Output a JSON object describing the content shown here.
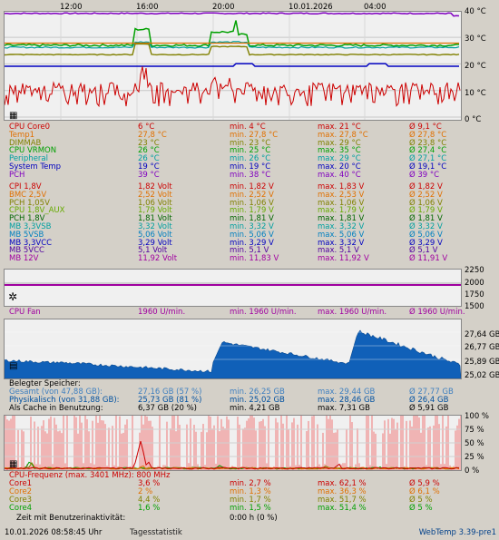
{
  "time_axis": [
    "12:00",
    "16:00",
    "20:00",
    "10.01.2026",
    "04:00"
  ],
  "temp_axis": [
    "40 °C",
    "30 °C",
    "20 °C",
    "10 °C",
    "0 °C"
  ],
  "temps": [
    {
      "name": "CPU Core0",
      "cur": "6 °C",
      "min": "min. 4 °C",
      "max": "max. 21 °C",
      "avg": "Ø 9,1 °C",
      "color": "#cc0000"
    },
    {
      "name": "Temp1",
      "cur": "27,8 °C",
      "min": "min. 27,8 °C",
      "max": "max. 27,8 °C",
      "avg": "Ø 27,8 °C",
      "color": "#e07000"
    },
    {
      "name": "DIMMAB",
      "cur": "23 °C",
      "min": "min. 23 °C",
      "max": "max. 29 °C",
      "avg": "Ø 23,8 °C",
      "color": "#808000"
    },
    {
      "name": "CPU VRMON",
      "cur": "26 °C",
      "min": "min. 25 °C",
      "max": "max. 35 °C",
      "avg": "Ø 27,4 °C",
      "color": "#00a000"
    },
    {
      "name": "Peripheral",
      "cur": "26 °C",
      "min": "min. 26 °C",
      "max": "max. 29 °C",
      "avg": "Ø 27,1 °C",
      "color": "#00a0a0"
    },
    {
      "name": "System Temp",
      "cur": "19 °C",
      "min": "min. 19 °C",
      "max": "max. 20 °C",
      "avg": "Ø 19,1 °C",
      "color": "#0000c0"
    },
    {
      "name": "PCH",
      "cur": "39 °C",
      "min": "min. 38 °C",
      "max": "max. 40 °C",
      "avg": "Ø 39 °C",
      "color": "#8000c0"
    }
  ],
  "volts": [
    {
      "name": "CPI 1,8V",
      "cur": "1,82 Volt",
      "min": "min. 1,82 V",
      "max": "max. 1,83 V",
      "avg": "Ø 1,82 V",
      "color": "#cc0000"
    },
    {
      "name": "BMC 2,5V",
      "cur": "2,52 Volt",
      "min": "min. 2,52 V",
      "max": "max. 2,53 V",
      "avg": "Ø 2,52 V",
      "color": "#e07000"
    },
    {
      "name": "PCH 1,05V",
      "cur": "1,06 Volt",
      "min": "min. 1,06 V",
      "max": "max. 1,06 V",
      "avg": "Ø 1,06 V",
      "color": "#808000"
    },
    {
      "name": "CPU 1,8V_AUX",
      "cur": "1,79 Volt",
      "min": "min. 1,79 V",
      "max": "max. 1,79 V",
      "avg": "Ø 1,79 V",
      "color": "#66aa00"
    },
    {
      "name": "PCH 1,8V",
      "cur": "1,81 Volt",
      "min": "min. 1,81 V",
      "max": "max. 1,81 V",
      "avg": "Ø 1,81 V",
      "color": "#006600"
    },
    {
      "name": "MB 3,3VSB",
      "cur": "3,32 Volt",
      "min": "min. 3,32 V",
      "max": "max. 3,32 V",
      "avg": "Ø 3,32 V",
      "color": "#00a0a0"
    },
    {
      "name": "MB 5VSB",
      "cur": "5,06 Volt",
      "min": "min. 5,06 V",
      "max": "max. 5,06 V",
      "avg": "Ø 5,06 V",
      "color": "#0080c0"
    },
    {
      "name": "MB 3,3VCC",
      "cur": "3,29 Volt",
      "min": "min. 3,29 V",
      "max": "max. 3,32 V",
      "avg": "Ø 3,29 V",
      "color": "#0000c0"
    },
    {
      "name": "MB 5VCC",
      "cur": "5,1 Volt",
      "min": "min. 5,1 V",
      "max": "max. 5,1 V",
      "avg": "Ø 5,1 V",
      "color": "#5000a0"
    },
    {
      "name": "MB 12V",
      "cur": "11,92 Volt",
      "min": "min. 11,83 V",
      "max": "max. 11,92 V",
      "avg": "Ø 11,91 V",
      "color": "#a000a0"
    }
  ],
  "fan_axis": [
    "2250",
    "2000",
    "1750",
    "1500"
  ],
  "fan": {
    "name": "CPU Fan",
    "cur": "1960 U/min.",
    "min": "min. 1960 U/min.",
    "max": "max. 1960 U/min.",
    "avg": "Ø 1960 U/min.",
    "color": "#a000a0"
  },
  "mem_axis": [
    "27,64 GB",
    "26,77 GB",
    "25,89 GB",
    "25,02 GB"
  ],
  "mem_title": "Belegter Speicher:",
  "mem": [
    {
      "name": "Gesamt (von 47,88 GB):",
      "cur": "27,16 GB (57 %)",
      "min": "min. 26,25 GB",
      "max": "max. 29,44 GB",
      "avg": "Ø 27,77 GB",
      "color": "#4080c0"
    },
    {
      "name": "Physikalisch (von 31,88 GB):",
      "cur": "25,73 GB (81 %)",
      "min": "min. 25,02 GB",
      "max": "max. 28,46 GB",
      "avg": "Ø 26,4 GB",
      "color": "#0050a0"
    },
    {
      "name": "Als Cache in Benutzung:",
      "cur": "6,37 GB (20 %)",
      "min": "min. 4,21 GB",
      "max": "max. 7,31 GB",
      "avg": "Ø 5,91 GB",
      "color": "#000000"
    }
  ],
  "cpu_axis": [
    "100 %",
    "75 %",
    "50 %",
    "25 %",
    "0 %"
  ],
  "cpu_title": "CPU-Frequenz (max. 3401 MHz): 800 MHz",
  "cores": [
    {
      "name": "Core1",
      "cur": "3,6 %",
      "min": "min. 2,7 %",
      "max": "max. 62,1 %",
      "avg": "Ø 5,9 %",
      "color": "#cc0000"
    },
    {
      "name": "Core2",
      "cur": "2 %",
      "min": "min. 1,3 %",
      "max": "max. 36,3 %",
      "avg": "Ø 6,1 %",
      "color": "#e07000"
    },
    {
      "name": "Core3",
      "cur": "4,4 %",
      "min": "min. 1,7 %",
      "max": "max. 51,7 %",
      "avg": "Ø 5 %",
      "color": "#808000"
    },
    {
      "name": "Core4",
      "cur": "1,6 %",
      "min": "min. 1,5 %",
      "max": "max. 51,4 %",
      "avg": "Ø 5 %",
      "color": "#00a000"
    }
  ],
  "idle": {
    "label": "Zeit mit Benutzerinaktivität:",
    "value": "0:00 h (0 %)"
  },
  "footer": {
    "datetime": "10.01.2026 08:58:45 Uhr",
    "stats": "Tagesstatistik",
    "app": "WebTemp 3.39-pre1"
  }
}
